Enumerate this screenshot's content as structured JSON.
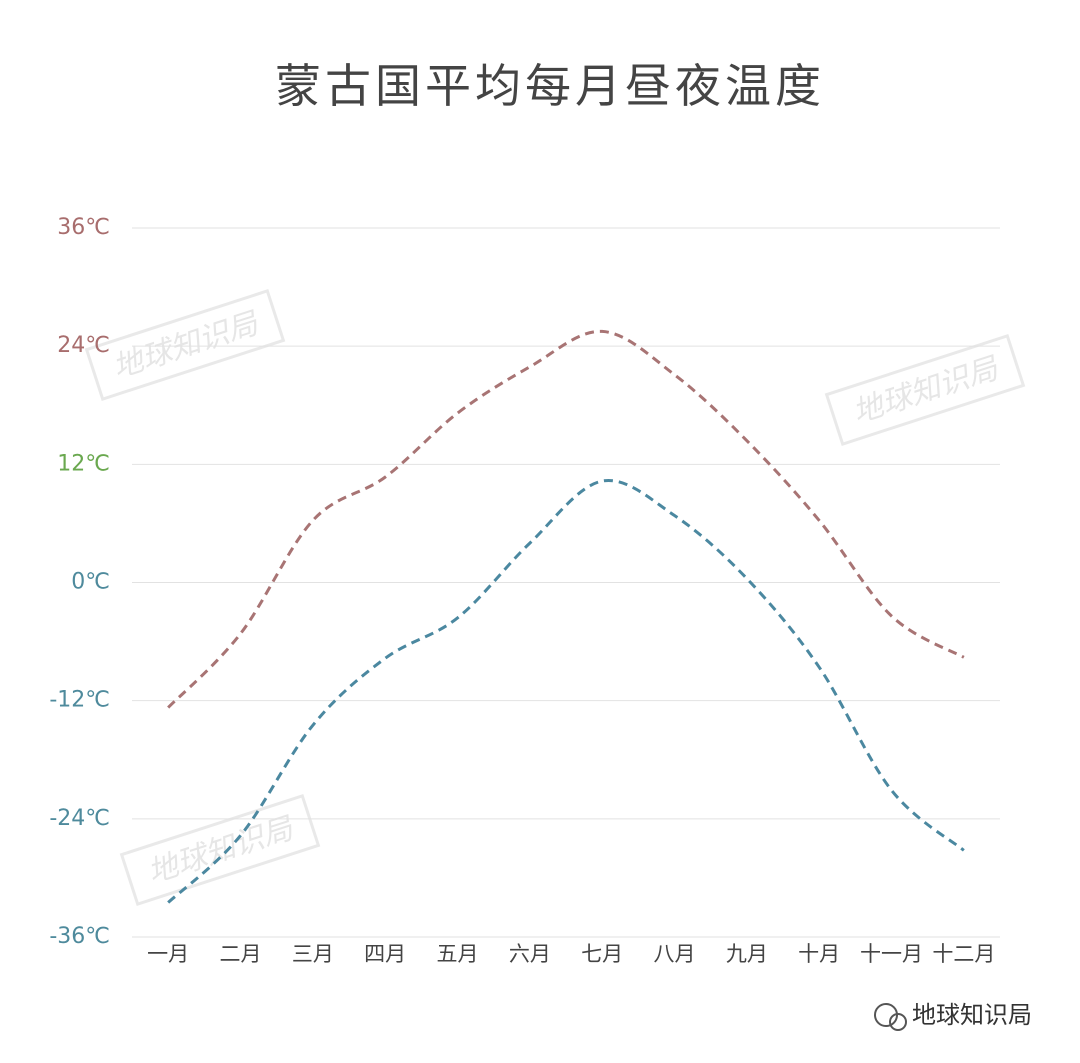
{
  "chart_data": {
    "type": "line",
    "title": "蒙古国平均每月昼夜温度",
    "categories": [
      "一月",
      "二月",
      "三月",
      "四月",
      "五月",
      "六月",
      "七月",
      "八月",
      "九月",
      "十月",
      "十一月",
      "十二月"
    ],
    "series": [
      {
        "color": "#a87474",
        "values": [
          -12.7,
          -5.2,
          6.3,
          10.7,
          17.2,
          21.9,
          25.5,
          21.1,
          14.4,
          6.3,
          -3.4,
          -7.6
        ]
      },
      {
        "color": "#4b88a0",
        "values": [
          -32.5,
          -25.7,
          -14.5,
          -7.7,
          -3.6,
          4.0,
          10.3,
          6.8,
          0.4,
          -8.6,
          -21.1,
          -27.2
        ]
      }
    ],
    "ylim": [
      -36,
      36
    ],
    "yticks": [
      {
        "value": -36,
        "label": "-36℃"
      },
      {
        "value": -24,
        "label": "-24℃"
      },
      {
        "value": -12,
        "label": "-12℃"
      },
      {
        "value": 0,
        "label": "0℃"
      },
      {
        "value": 12,
        "label": "12℃"
      },
      {
        "value": 24,
        "label": "24℃"
      },
      {
        "value": 36,
        "label": "36℃"
      }
    ],
    "ytick_colors": [
      "#4e8a9c",
      "#4e8a9c",
      "#4e8a9c",
      "#4e8a9c",
      "#6aa84f",
      "#a86d6d",
      "#a86d6d"
    ],
    "grid": true,
    "dashed": true,
    "watermark": "地球知识局",
    "credit": "地球知识局"
  }
}
